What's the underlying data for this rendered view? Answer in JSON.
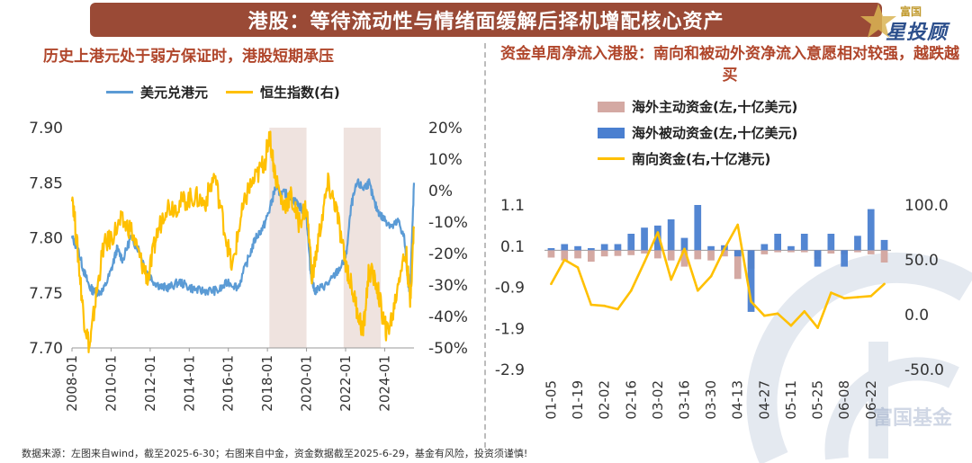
{
  "banner": {
    "title": "港股：等待流动性与情绪面缓解后择机增配核心资产"
  },
  "logo": {
    "top": "富国",
    "main": "星投顾"
  },
  "watermark": "富国基金",
  "left_subtitle": "历史上港元处于弱方保证时，港股短期承压",
  "right_subtitle": "资金单周净流入港股：南向和被动外资净流入意愿相对较强，越跌越买",
  "footer": "数据来源：左图来自wind，截至2025-6-30；右图来自中金，资金数据截至2025-6-29，基金有风险，投资须谨慎!",
  "colors": {
    "banner": "#9a4a36",
    "usd_hkd": "#5b9bd5",
    "hsi": "#ffc000",
    "active": "#d4a9a3",
    "passive": "#4a7fd0",
    "southbound": "#ffc000",
    "shade": "#efe3df"
  },
  "chart_data": [
    {
      "type": "line",
      "title": "历史上港元处于弱方保证时，港股短期承压",
      "legend": [
        "美元兑港元",
        "恒生指数(右)"
      ],
      "x_ticks": [
        "2008-01",
        "2010-01",
        "2012-01",
        "2014-01",
        "2016-01",
        "2018-01",
        "2020-01",
        "2022-01",
        "2024-01"
      ],
      "x_range": [
        2008.0,
        2025.5
      ],
      "y_left_ticks": [
        "7.90",
        "7.85",
        "7.80",
        "7.75",
        "7.70"
      ],
      "y_left_range": [
        7.7,
        7.9
      ],
      "y_right_ticks": [
        "20%",
        "10%",
        "0%",
        "-10%",
        "-20%",
        "-30%",
        "-40%",
        "-50%"
      ],
      "y_right_range": [
        -50,
        20
      ],
      "shaded_periods": [
        [
          2018.1,
          2020.0
        ],
        [
          2021.9,
          2023.8
        ]
      ],
      "series": [
        {
          "name": "美元兑港元",
          "axis": "left",
          "x": [
            2008.0,
            2008.3,
            2008.6,
            2008.9,
            2009.2,
            2009.6,
            2010.0,
            2010.3,
            2010.6,
            2011.0,
            2011.4,
            2011.8,
            2012.2,
            2012.6,
            2013.0,
            2013.5,
            2014.0,
            2014.5,
            2015.0,
            2015.5,
            2016.0,
            2016.5,
            2017.0,
            2017.4,
            2017.8,
            2018.1,
            2018.4,
            2018.7,
            2019.0,
            2019.3,
            2019.6,
            2020.0,
            2020.2,
            2020.4,
            2020.8,
            2021.2,
            2021.6,
            2022.0,
            2022.3,
            2022.6,
            2022.9,
            2023.2,
            2023.5,
            2023.8,
            2024.1,
            2024.4,
            2024.7,
            2025.0,
            2025.2,
            2025.3,
            2025.5
          ],
          "y": [
            7.8,
            7.79,
            7.77,
            7.755,
            7.75,
            7.752,
            7.77,
            7.79,
            7.78,
            7.8,
            7.79,
            7.77,
            7.76,
            7.755,
            7.755,
            7.76,
            7.755,
            7.752,
            7.752,
            7.752,
            7.76,
            7.755,
            7.78,
            7.8,
            7.81,
            7.825,
            7.845,
            7.84,
            7.84,
            7.835,
            7.83,
            7.82,
            7.77,
            7.752,
            7.755,
            7.76,
            7.77,
            7.78,
            7.83,
            7.85,
            7.845,
            7.85,
            7.83,
            7.82,
            7.815,
            7.81,
            7.815,
            7.8,
            7.76,
            7.75,
            7.85
          ]
        },
        {
          "name": "恒生指数(右)",
          "axis": "right",
          "x": [
            2008.0,
            2008.3,
            2008.6,
            2008.9,
            2009.2,
            2009.6,
            2010.0,
            2010.5,
            2011.0,
            2011.5,
            2011.9,
            2012.3,
            2012.8,
            2013.3,
            2013.8,
            2014.3,
            2014.8,
            2015.3,
            2015.8,
            2016.2,
            2016.6,
            2017.0,
            2017.5,
            2017.9,
            2018.1,
            2018.4,
            2018.8,
            2019.2,
            2019.6,
            2020.0,
            2020.3,
            2020.7,
            2021.1,
            2021.5,
            2021.9,
            2022.2,
            2022.6,
            2022.9,
            2023.2,
            2023.6,
            2023.9,
            2024.1,
            2024.4,
            2024.8,
            2025.1,
            2025.3,
            2025.5
          ],
          "y": [
            0,
            -20,
            -40,
            -50,
            -35,
            -18,
            -15,
            -10,
            -12,
            -22,
            -28,
            -15,
            -5,
            -5,
            -3,
            -2,
            -4,
            5,
            -12,
            -25,
            -10,
            0,
            5,
            10,
            18,
            5,
            -5,
            -2,
            -10,
            -5,
            -28,
            -12,
            2,
            -5,
            -20,
            -28,
            -38,
            -45,
            -25,
            -30,
            -40,
            -45,
            -40,
            -25,
            -20,
            -35,
            -12
          ]
        }
      ]
    },
    {
      "type": "bar",
      "title": "资金单周净流入港股：南向和被动外资净流入意愿相对较强，越跌越买",
      "legend": [
        "海外主动资金(左,十亿美元)",
        "海外被动资金(左,十亿美元)",
        "南向资金(右,十亿港元)"
      ],
      "x_tick_labels": [
        "01-05",
        "01-19",
        "02-02",
        "02-16",
        "03-02",
        "03-16",
        "03-30",
        "04-13",
        "04-27",
        "05-11",
        "05-25",
        "06-08",
        "06-22"
      ],
      "y_left_ticks": [
        "1.1",
        "0.1",
        "-0.9",
        "-1.9",
        "-2.9"
      ],
      "y_left_range": [
        -2.9,
        1.1
      ],
      "y_right_ticks": [
        "100.0",
        "50.0",
        "0.0",
        "-50.0"
      ],
      "y_right_range": [
        -50,
        100
      ],
      "categories": [
        "01-05",
        "01-12",
        "01-19",
        "01-26",
        "02-02",
        "02-09",
        "02-16",
        "02-23",
        "03-02",
        "03-09",
        "03-16",
        "03-23",
        "03-30",
        "04-06",
        "04-13",
        "04-20",
        "04-27",
        "05-04",
        "05-11",
        "05-18",
        "05-25",
        "06-01",
        "06-08",
        "06-15",
        "06-22",
        "06-29"
      ],
      "series": [
        {
          "name": "海外主动资金(左,十亿美元)",
          "axis": "left",
          "values": [
            -0.18,
            -0.25,
            -0.2,
            -0.28,
            -0.15,
            -0.14,
            -0.12,
            -0.08,
            -0.2,
            -0.25,
            -0.4,
            -0.22,
            -0.25,
            -0.15,
            -0.7,
            -0.45,
            -0.1,
            -0.05,
            -0.05,
            -0.05,
            -0.22,
            -0.08,
            -0.1,
            -0.05,
            -0.1,
            -0.3
          ]
        },
        {
          "name": "海外被动资金(左,十亿美元)",
          "axis": "left",
          "values": [
            0.05,
            0.15,
            0.1,
            0.05,
            0.15,
            0.15,
            0.4,
            0.55,
            0.6,
            0.75,
            0.3,
            1.1,
            0.1,
            0.12,
            -0.15,
            -1.5,
            0.15,
            0.4,
            0.1,
            0.4,
            -0.4,
            0.4,
            -0.4,
            0.35,
            1.0,
            0.25
          ]
        },
        {
          "name": "南向资金(右,十亿港元)",
          "axis": "right",
          "values": [
            28,
            50,
            43,
            9,
            8,
            5,
            22,
            48,
            75,
            32,
            60,
            22,
            35,
            60,
            82,
            12,
            -1,
            1,
            -10,
            3,
            -12,
            20,
            15,
            16,
            17,
            28
          ]
        }
      ]
    }
  ]
}
